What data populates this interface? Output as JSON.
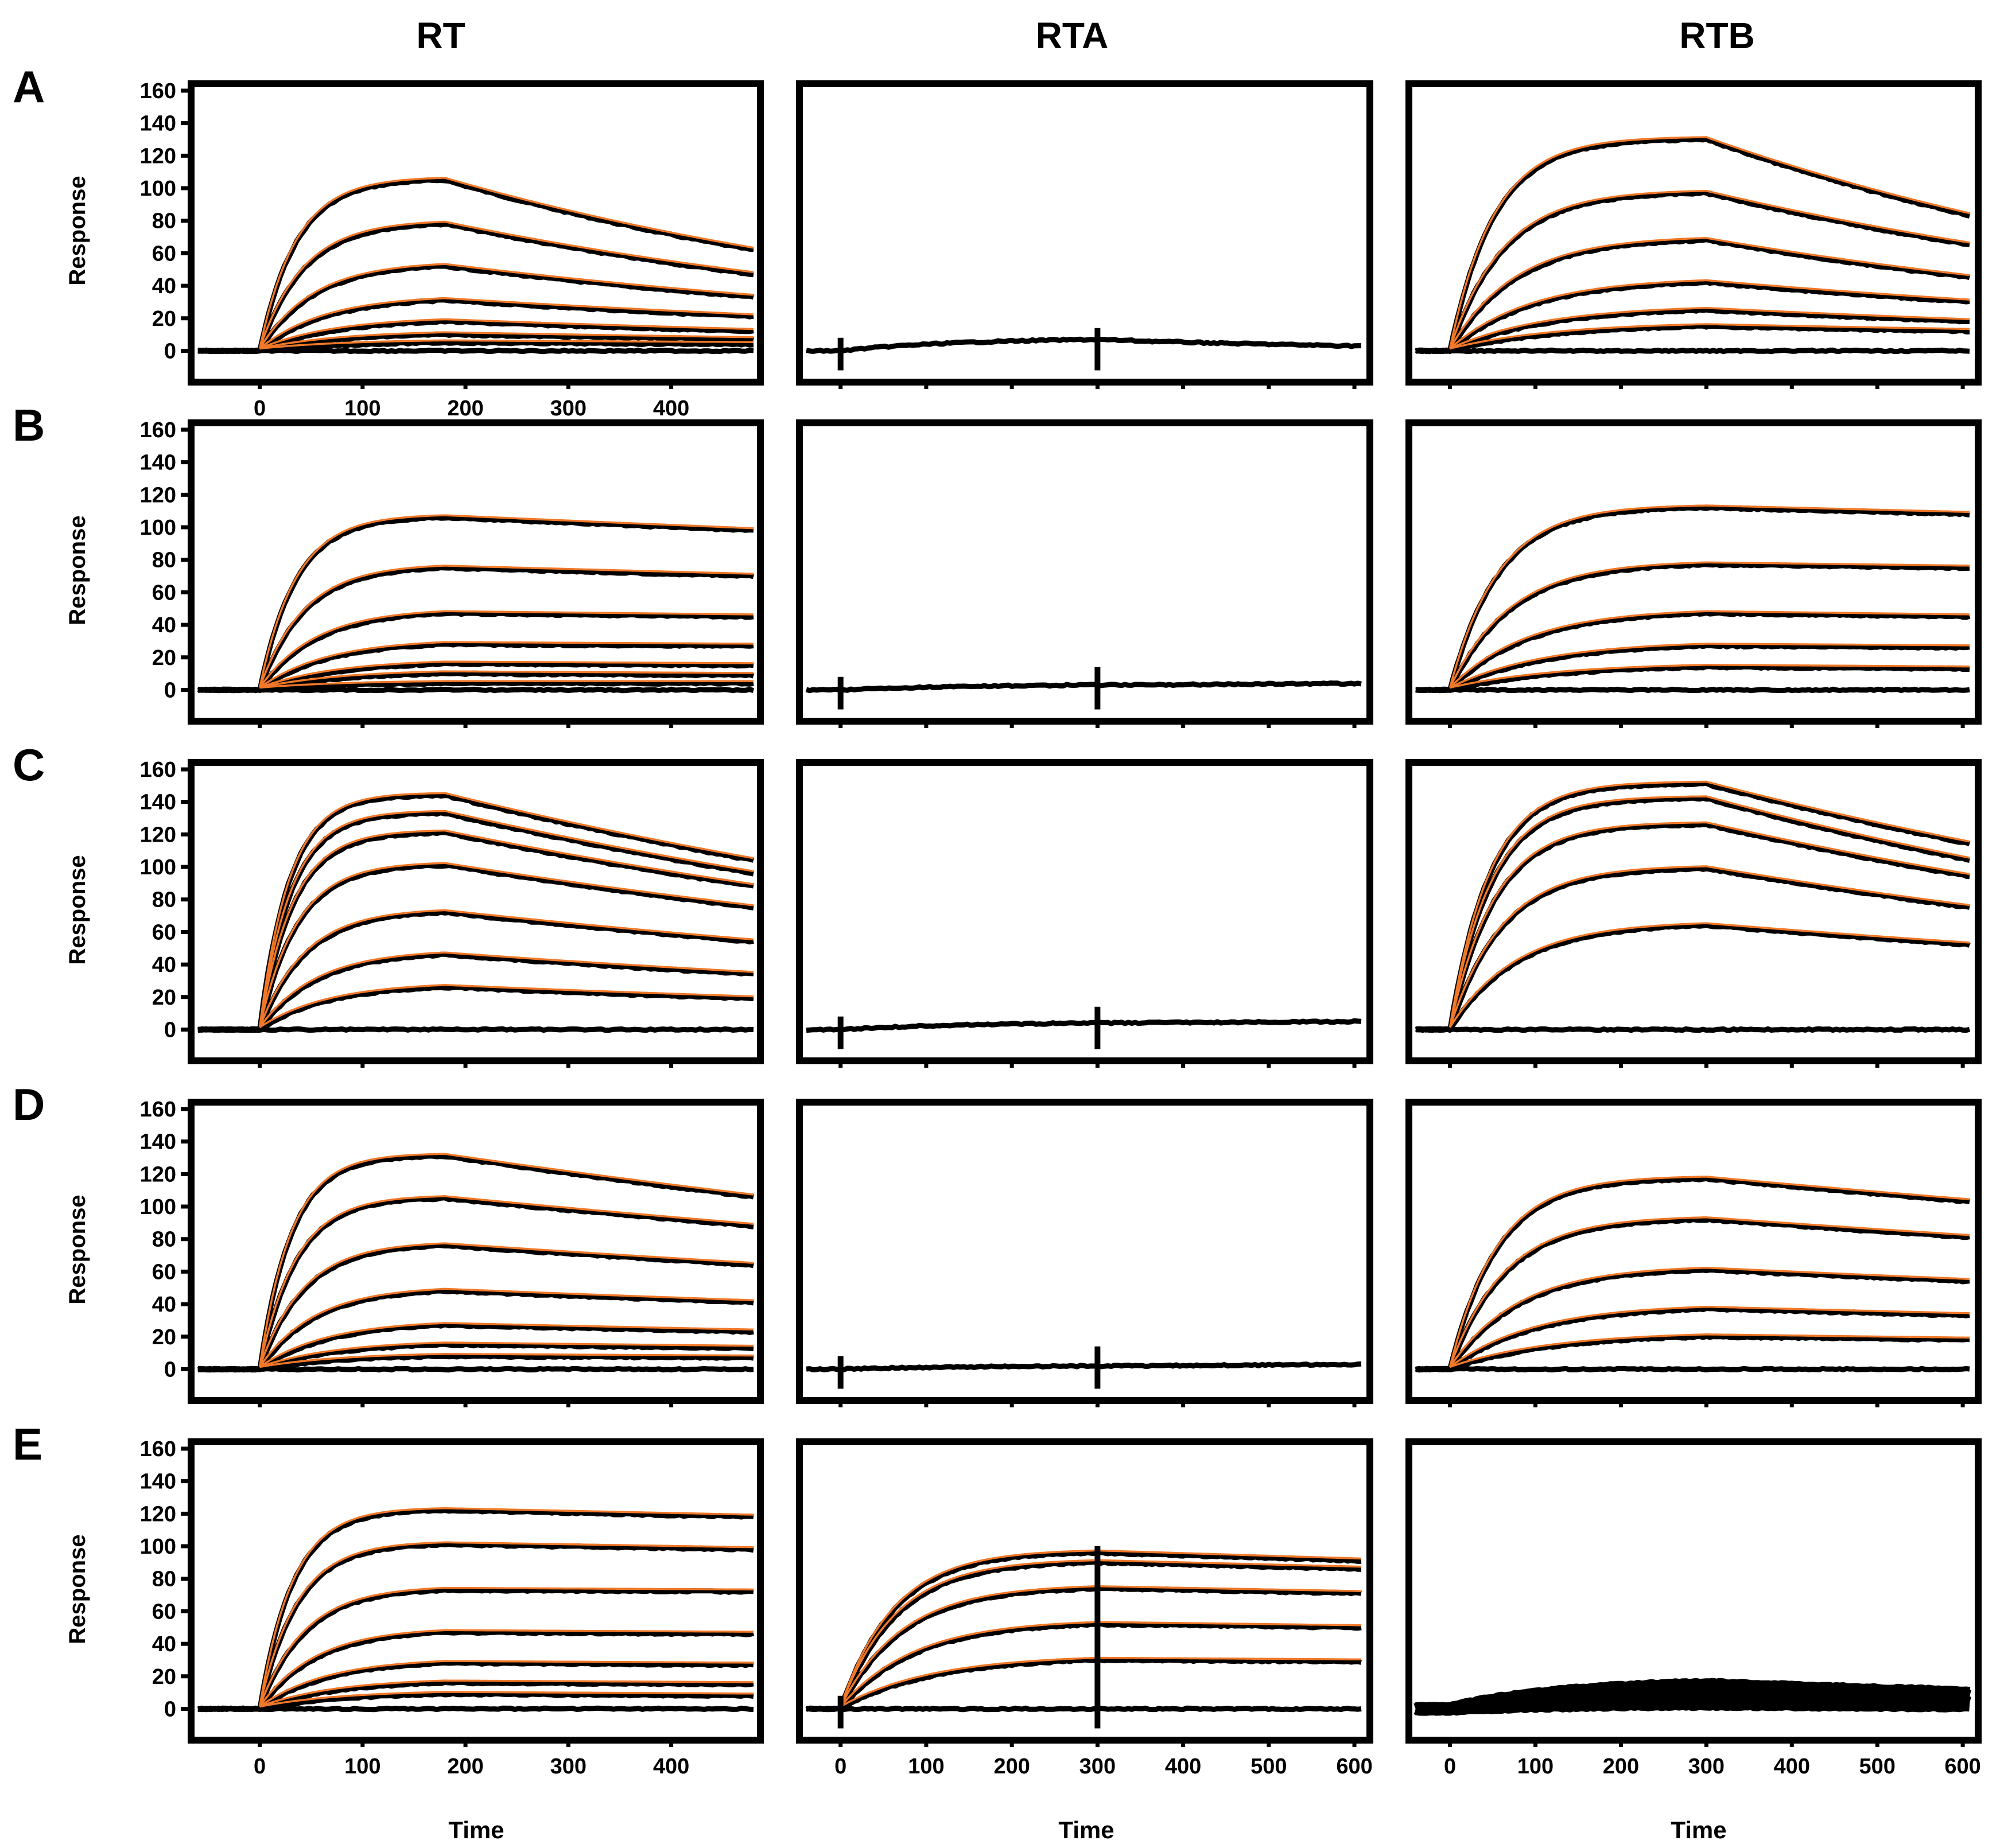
{
  "figure": {
    "column_titles": [
      "RT",
      "RTA",
      "RTB"
    ],
    "row_labels": [
      "A",
      "B",
      "C",
      "D",
      "E"
    ],
    "y_axis_label": "Response",
    "x_axis_label": "Time"
  },
  "colors": {
    "data_trace": "#000000",
    "fit_curve": "#f07828",
    "frame": "#000000",
    "background": "#ffffff"
  },
  "chart_data": [
    {
      "row": "A",
      "col": "RT",
      "type": "line",
      "xlim": [
        -60,
        480
      ],
      "ylim": [
        -15,
        160
      ],
      "inject_end": 180,
      "yticks": [
        0,
        20,
        40,
        60,
        80,
        100,
        120,
        140,
        160
      ],
      "xticks": [
        0,
        100,
        200,
        300,
        400
      ],
      "ylabel": "Response",
      "series": [
        {
          "name": "c1",
          "peak": 105,
          "end": 62,
          "fit": true
        },
        {
          "name": "c2",
          "peak": 78,
          "end": 47,
          "fit": true
        },
        {
          "name": "c3",
          "peak": 52,
          "end": 33,
          "fit": true
        },
        {
          "name": "c4",
          "peak": 31,
          "end": 21,
          "fit": true
        },
        {
          "name": "c5",
          "peak": 18,
          "end": 12,
          "fit": true
        },
        {
          "name": "c6",
          "peak": 10,
          "end": 7,
          "fit": true
        },
        {
          "name": "c7",
          "peak": 5,
          "end": 4,
          "fit": true
        },
        {
          "name": "blank",
          "peak": 0,
          "end": 0,
          "fit": false
        }
      ]
    },
    {
      "row": "A",
      "col": "RTA",
      "type": "line",
      "xlim": [
        -40,
        610
      ],
      "ylim": [
        -15,
        160
      ],
      "inject_end": 300,
      "yticks": [],
      "xticks": [],
      "series": [
        {
          "name": "trace",
          "peak": 7,
          "end": 3,
          "fit": false
        }
      ]
    },
    {
      "row": "A",
      "col": "RTB",
      "type": "line",
      "xlim": [
        -40,
        610
      ],
      "ylim": [
        -15,
        160
      ],
      "inject_end": 300,
      "yticks": [],
      "xticks": [],
      "series": [
        {
          "name": "c1",
          "peak": 130,
          "end": 83,
          "fit": true
        },
        {
          "name": "c2",
          "peak": 97,
          "end": 65,
          "fit": true
        },
        {
          "name": "c3",
          "peak": 68,
          "end": 45,
          "fit": true
        },
        {
          "name": "c4",
          "peak": 42,
          "end": 30,
          "fit": true
        },
        {
          "name": "c5",
          "peak": 25,
          "end": 18,
          "fit": true
        },
        {
          "name": "c6",
          "peak": 15,
          "end": 12,
          "fit": true
        },
        {
          "name": "blank",
          "peak": 0,
          "end": 0,
          "fit": false
        }
      ]
    },
    {
      "row": "B",
      "col": "RT",
      "type": "line",
      "xlim": [
        -60,
        480
      ],
      "ylim": [
        -15,
        160
      ],
      "inject_end": 180,
      "yticks": [
        0,
        20,
        40,
        60,
        80,
        100,
        120,
        140,
        160
      ],
      "xticks": [],
      "ylabel": "Response",
      "series": [
        {
          "name": "c1",
          "peak": 106,
          "end": 98,
          "fit": true
        },
        {
          "name": "c2",
          "peak": 75,
          "end": 70,
          "fit": true
        },
        {
          "name": "c3",
          "peak": 47,
          "end": 45,
          "fit": true
        },
        {
          "name": "c4",
          "peak": 28,
          "end": 27,
          "fit": true
        },
        {
          "name": "c5",
          "peak": 16,
          "end": 15,
          "fit": true
        },
        {
          "name": "c6",
          "peak": 10,
          "end": 9,
          "fit": true
        },
        {
          "name": "c7",
          "peak": 4,
          "end": 4,
          "fit": true
        },
        {
          "name": "blank",
          "peak": 0,
          "end": 0,
          "fit": false
        }
      ]
    },
    {
      "row": "B",
      "col": "RTA",
      "type": "line",
      "xlim": [
        -40,
        610
      ],
      "ylim": [
        -15,
        160
      ],
      "inject_end": 300,
      "yticks": [],
      "xticks": [],
      "series": [
        {
          "name": "trace",
          "peak": 3,
          "end": 4,
          "fit": false
        }
      ]
    },
    {
      "row": "B",
      "col": "RTB",
      "type": "line",
      "xlim": [
        -40,
        610
      ],
      "ylim": [
        -15,
        160
      ],
      "inject_end": 300,
      "yticks": [],
      "xticks": [],
      "series": [
        {
          "name": "c1",
          "peak": 112,
          "end": 108,
          "fit": true
        },
        {
          "name": "c2",
          "peak": 77,
          "end": 75,
          "fit": true
        },
        {
          "name": "c3",
          "peak": 47,
          "end": 45,
          "fit": true
        },
        {
          "name": "c4",
          "peak": 27,
          "end": 26,
          "fit": true
        },
        {
          "name": "c5",
          "peak": 14,
          "end": 13,
          "fit": true
        },
        {
          "name": "blank",
          "peak": 0,
          "end": 0,
          "fit": false
        }
      ]
    },
    {
      "row": "C",
      "col": "RT",
      "type": "line",
      "xlim": [
        -60,
        480
      ],
      "ylim": [
        -15,
        160
      ],
      "inject_end": 180,
      "yticks": [
        0,
        20,
        40,
        60,
        80,
        100,
        120,
        140,
        160
      ],
      "xticks": [],
      "ylabel": "Response",
      "series": [
        {
          "name": "c1",
          "peak": 144,
          "end": 104,
          "fit": true
        },
        {
          "name": "c2",
          "peak": 133,
          "end": 96,
          "fit": true
        },
        {
          "name": "c3",
          "peak": 121,
          "end": 88,
          "fit": true
        },
        {
          "name": "c4",
          "peak": 101,
          "end": 75,
          "fit": true
        },
        {
          "name": "c5",
          "peak": 72,
          "end": 54,
          "fit": true
        },
        {
          "name": "c6",
          "peak": 46,
          "end": 34,
          "fit": true
        },
        {
          "name": "c7",
          "peak": 26,
          "end": 19,
          "fit": true
        },
        {
          "name": "blank",
          "peak": 0,
          "end": 0,
          "fit": false
        }
      ]
    },
    {
      "row": "C",
      "col": "RTA",
      "type": "line",
      "xlim": [
        -40,
        610
      ],
      "ylim": [
        -15,
        160
      ],
      "inject_end": 300,
      "yticks": [],
      "xticks": [],
      "series": [
        {
          "name": "trace",
          "peak": 4,
          "end": 5,
          "fit": false
        }
      ]
    },
    {
      "row": "C",
      "col": "RTB",
      "type": "line",
      "xlim": [
        -40,
        610
      ],
      "ylim": [
        -15,
        160
      ],
      "inject_end": 300,
      "yticks": [],
      "xticks": [],
      "series": [
        {
          "name": "c1",
          "peak": 151,
          "end": 114,
          "fit": true
        },
        {
          "name": "c2",
          "peak": 142,
          "end": 104,
          "fit": true
        },
        {
          "name": "c3",
          "peak": 126,
          "end": 94,
          "fit": true
        },
        {
          "name": "c4",
          "peak": 99,
          "end": 75,
          "fit": true
        },
        {
          "name": "c5",
          "peak": 64,
          "end": 52,
          "fit": true
        },
        {
          "name": "blank",
          "peak": 0,
          "end": 0,
          "fit": false
        }
      ]
    },
    {
      "row": "D",
      "col": "RT",
      "type": "line",
      "xlim": [
        -60,
        480
      ],
      "ylim": [
        -15,
        160
      ],
      "inject_end": 180,
      "yticks": [
        0,
        20,
        40,
        60,
        80,
        100,
        120,
        140,
        160
      ],
      "xticks": [],
      "ylabel": "Response",
      "series": [
        {
          "name": "c1",
          "peak": 131,
          "end": 106,
          "fit": true
        },
        {
          "name": "c2",
          "peak": 105,
          "end": 88,
          "fit": true
        },
        {
          "name": "c3",
          "peak": 76,
          "end": 64,
          "fit": true
        },
        {
          "name": "c4",
          "peak": 48,
          "end": 41,
          "fit": true
        },
        {
          "name": "c5",
          "peak": 27,
          "end": 23,
          "fit": true
        },
        {
          "name": "c6",
          "peak": 15,
          "end": 13,
          "fit": true
        },
        {
          "name": "c7",
          "peak": 8,
          "end": 7,
          "fit": true
        },
        {
          "name": "blank",
          "peak": 0,
          "end": 0,
          "fit": false
        }
      ]
    },
    {
      "row": "D",
      "col": "RTA",
      "type": "line",
      "xlim": [
        -40,
        610
      ],
      "ylim": [
        -15,
        160
      ],
      "inject_end": 300,
      "yticks": [],
      "xticks": [],
      "series": [
        {
          "name": "trace",
          "peak": 2,
          "end": 3,
          "fit": false
        }
      ]
    },
    {
      "row": "D",
      "col": "RTB",
      "type": "line",
      "xlim": [
        -40,
        610
      ],
      "ylim": [
        -15,
        160
      ],
      "inject_end": 300,
      "yticks": [],
      "xticks": [],
      "series": [
        {
          "name": "c1",
          "peak": 117,
          "end": 103,
          "fit": true
        },
        {
          "name": "c2",
          "peak": 92,
          "end": 81,
          "fit": true
        },
        {
          "name": "c3",
          "peak": 61,
          "end": 54,
          "fit": true
        },
        {
          "name": "c4",
          "peak": 37,
          "end": 33,
          "fit": true
        },
        {
          "name": "c5",
          "peak": 20,
          "end": 18,
          "fit": true
        },
        {
          "name": "blank",
          "peak": 0,
          "end": 0,
          "fit": false
        }
      ]
    },
    {
      "row": "E",
      "col": "RT",
      "type": "line",
      "xlim": [
        -60,
        480
      ],
      "ylim": [
        -15,
        160
      ],
      "inject_end": 180,
      "yticks": [
        0,
        20,
        40,
        60,
        80,
        100,
        120,
        140,
        160
      ],
      "xticks": [
        0,
        100,
        200,
        300,
        400
      ],
      "ylabel": "Response",
      "xlabel": "Time",
      "series": [
        {
          "name": "c1",
          "peak": 122,
          "end": 118,
          "fit": true
        },
        {
          "name": "c2",
          "peak": 101,
          "end": 98,
          "fit": true
        },
        {
          "name": "c3",
          "peak": 73,
          "end": 72,
          "fit": true
        },
        {
          "name": "c4",
          "peak": 47,
          "end": 46,
          "fit": true
        },
        {
          "name": "c5",
          "peak": 28,
          "end": 27,
          "fit": true
        },
        {
          "name": "c6",
          "peak": 16,
          "end": 15,
          "fit": true
        },
        {
          "name": "c7",
          "peak": 9,
          "end": 8,
          "fit": true
        },
        {
          "name": "blank",
          "peak": 0,
          "end": 0,
          "fit": false
        }
      ]
    },
    {
      "row": "E",
      "col": "RTA",
      "type": "line",
      "xlim": [
        -40,
        610
      ],
      "ylim": [
        -15,
        160
      ],
      "inject_end": 300,
      "yticks": [],
      "xticks": [
        0,
        100,
        200,
        300,
        400,
        500,
        600
      ],
      "xlabel": "Time",
      "series": [
        {
          "name": "c1",
          "peak": 96,
          "end": 91,
          "fit": true
        },
        {
          "name": "c2",
          "peak": 90,
          "end": 86,
          "fit": true
        },
        {
          "name": "c3",
          "peak": 74,
          "end": 71,
          "fit": true
        },
        {
          "name": "c4",
          "peak": 52,
          "end": 50,
          "fit": true
        },
        {
          "name": "c5",
          "peak": 30,
          "end": 29,
          "fit": true
        },
        {
          "name": "blank",
          "peak": 0,
          "end": 0,
          "fit": false
        }
      ]
    },
    {
      "row": "E",
      "col": "RTB",
      "type": "line",
      "xlim": [
        -40,
        610
      ],
      "ylim": [
        -15,
        160
      ],
      "inject_end": 300,
      "yticks": [],
      "xticks": [
        0,
        100,
        200,
        300,
        400,
        500,
        600
      ],
      "xlabel": "Time",
      "series": [
        {
          "name": "n1",
          "peak": 15,
          "end": 10,
          "fit": false
        },
        {
          "name": "n2",
          "peak": 12,
          "end": 8,
          "fit": false
        },
        {
          "name": "n3",
          "peak": 9,
          "end": 6,
          "fit": false
        },
        {
          "name": "n4",
          "peak": 6,
          "end": 4,
          "fit": false
        },
        {
          "name": "n5",
          "peak": 3,
          "end": 2,
          "fit": false
        }
      ]
    }
  ]
}
